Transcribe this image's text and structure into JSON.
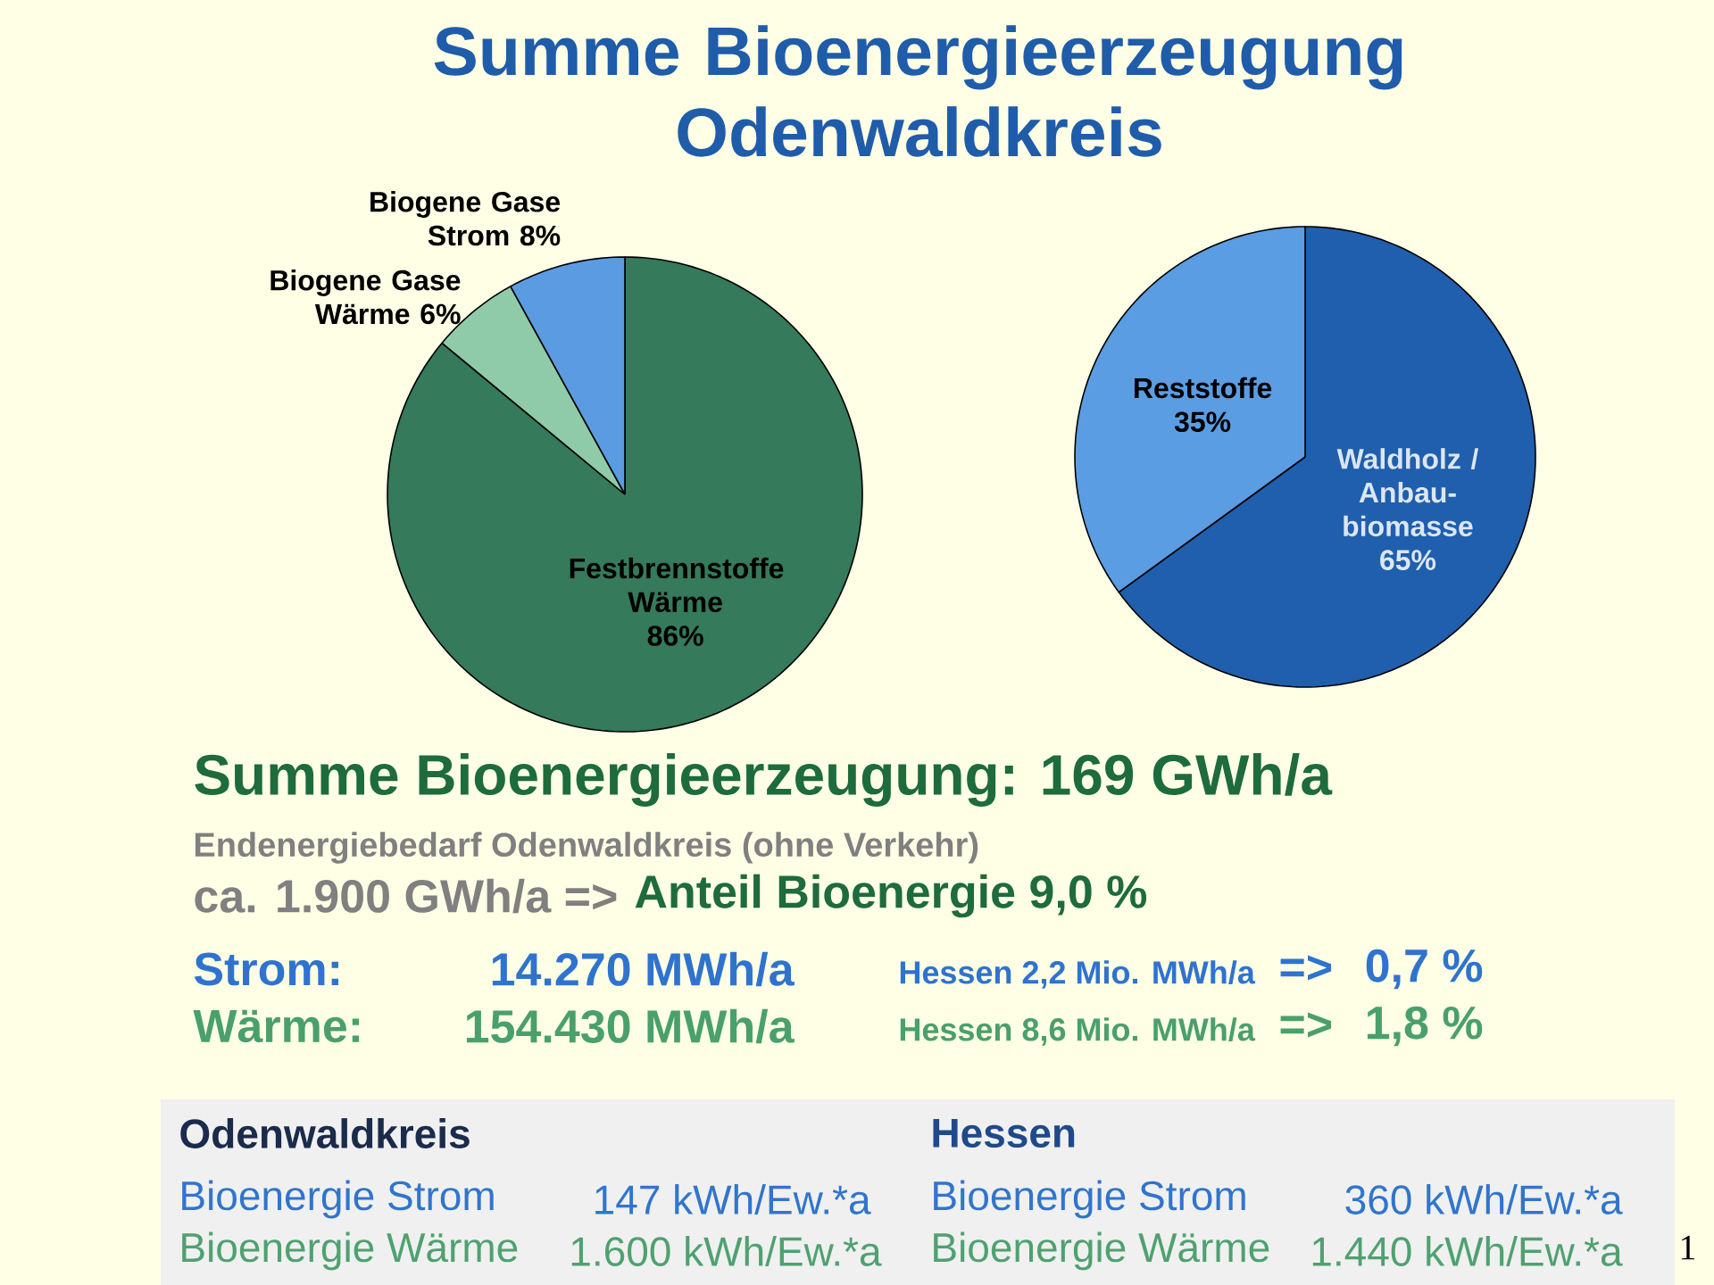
{
  "chart_data": [
    {
      "type": "pie",
      "title": "Summe Bioenergieerzeugung Odenwaldkreis",
      "categories": [
        "Festbrennstoffe Wärme",
        "Biogene Gase Wärme",
        "Biogene Gase Strom"
      ],
      "values": [
        86,
        6,
        8
      ],
      "colors": [
        "#357a5a",
        "#8fcba8",
        "#5b9be1"
      ],
      "value_labels": [
        "86%",
        "6%",
        "8%"
      ],
      "annotations": [
        "Summe Bioenergieerzeugung: 169 GWh/a",
        "Endenergiebedarf Odenwaldkreis (ohne Verkehr)",
        "ca. 1.900 GWh/a =>",
        "Anteil Bioenergie 9,0 %",
        "Strom:",
        "14.270 MWh/a",
        "Hessen 2,2 Mio. MWh/a",
        "=>",
        "0,7 %",
        "Wärme:",
        "154.430 MWh/a",
        "Hessen 8,6 Mio. MWh/a",
        "=>",
        "1,8 %",
        "Odenwaldkreis",
        "Hessen",
        "Bioenergie Strom",
        "147 kWh/Ew.*a",
        "Bioenergie Strom",
        "360 kWh/Ew.*a",
        "Bioenergie Wärme",
        "1.600 kWh/Ew.*a",
        "Bioenergie Wärme",
        "1.440 kWh/Ew.*a",
        "1"
      ]
    },
    {
      "type": "pie",
      "categories": [
        "Waldholz / Anbau-biomasse",
        "Reststoffe"
      ],
      "values": [
        65,
        35
      ],
      "colors": [
        "#1f5fad",
        "#5b9de3"
      ],
      "value_labels": [
        "65%",
        "35%"
      ]
    }
  ]
}
